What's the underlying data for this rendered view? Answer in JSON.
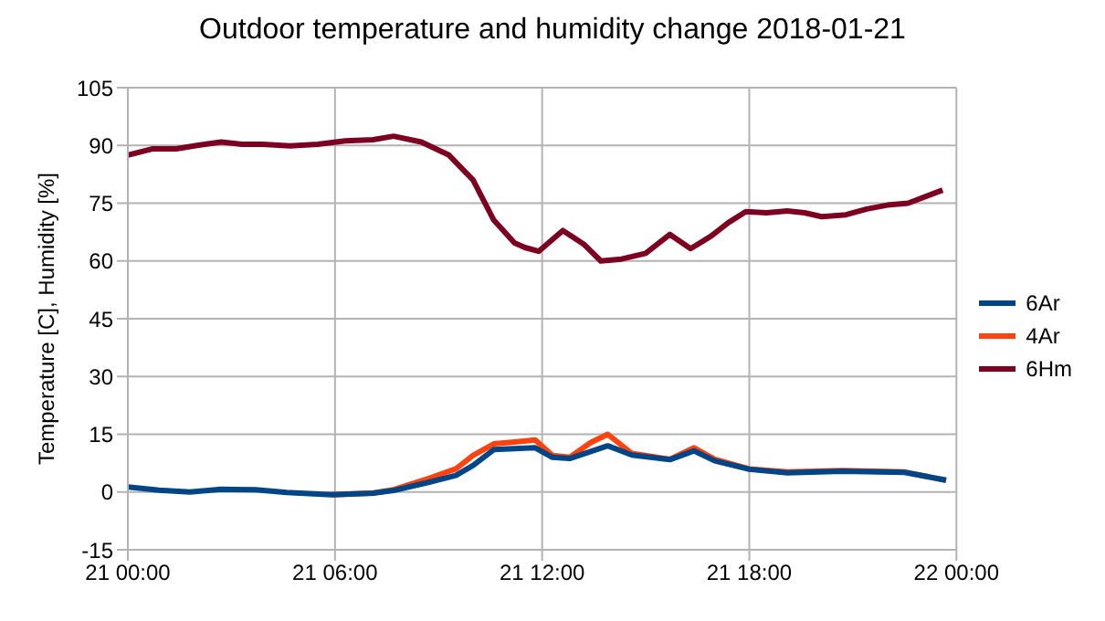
{
  "chart_data": {
    "type": "line",
    "title": "Outdoor temperature and humidity change 2018-01-21",
    "ylabel": "Temperature [C], Humidity [%]",
    "xlim": [
      "2018-01-21T00:00",
      "2018-01-22T00:00"
    ],
    "xticks": [
      {
        "value": "2018-01-21T00:00",
        "label": "21 00:00"
      },
      {
        "value": "2018-01-21T06:00",
        "label": "21 06:00"
      },
      {
        "value": "2018-01-21T12:00",
        "label": "21 12:00"
      },
      {
        "value": "2018-01-21T18:00",
        "label": "21 18:00"
      },
      {
        "value": "2018-01-22T00:00",
        "label": "22 00:00"
      }
    ],
    "ylim": [
      -15,
      105
    ],
    "yticks": [
      -15,
      0,
      15,
      30,
      45,
      60,
      75,
      90,
      105
    ],
    "grid": true,
    "legend": "right",
    "marker": "none",
    "line_style": "solid",
    "series": [
      {
        "name": "6Ar",
        "color": "#004586",
        "x": [
          "2018-01-21T00:00",
          "2018-01-21T00:54",
          "2018-01-21T01:48",
          "2018-01-21T02:42",
          "2018-01-21T03:42",
          "2018-01-21T04:36",
          "2018-01-21T05:54",
          "2018-01-21T07:06",
          "2018-01-21T07:42",
          "2018-01-21T08:42",
          "2018-01-21T09:30",
          "2018-01-21T10:00",
          "2018-01-21T10:36",
          "2018-01-21T11:48",
          "2018-01-21T12:18",
          "2018-01-21T12:48",
          "2018-01-21T13:54",
          "2018-01-21T14:36",
          "2018-01-21T15:42",
          "2018-01-21T16:24",
          "2018-01-21T17:00",
          "2018-01-21T18:00",
          "2018-01-21T19:06",
          "2018-01-21T20:42",
          "2018-01-21T22:30",
          "2018-01-21T23:42"
        ],
        "values": [
          1.3,
          0.5,
          0,
          0.7,
          0.6,
          -0.1,
          -0.7,
          -0.3,
          0.4,
          2.5,
          4.3,
          6.9,
          11,
          11.5,
          9,
          8.7,
          12,
          9.6,
          8.4,
          10.7,
          8.1,
          5.9,
          5,
          5.4,
          5.1,
          3.1
        ]
      },
      {
        "name": "4Ar",
        "color": "#ff420e",
        "x": [
          "2018-01-21T05:54",
          "2018-01-21T07:06",
          "2018-01-21T07:42",
          "2018-01-21T08:42",
          "2018-01-21T09:30",
          "2018-01-21T10:00",
          "2018-01-21T10:36",
          "2018-01-21T11:12",
          "2018-01-21T11:48",
          "2018-01-21T12:18",
          "2018-01-21T12:48",
          "2018-01-21T13:24",
          "2018-01-21T13:54",
          "2018-01-21T14:36",
          "2018-01-21T15:42",
          "2018-01-21T16:24",
          "2018-01-21T17:00",
          "2018-01-21T18:00",
          "2018-01-21T19:06",
          "2018-01-21T20:42",
          "2018-01-21T22:30",
          "2018-01-21T23:42"
        ],
        "values": [
          -0.7,
          -0.3,
          0.6,
          3.5,
          6,
          9.5,
          12.5,
          13,
          13.5,
          9.5,
          9,
          12.8,
          15,
          10,
          8.5,
          11.5,
          8.5,
          6,
          5.2,
          5.6,
          5.2,
          3
        ]
      },
      {
        "name": "6Hm",
        "color": "#7e0021",
        "x": [
          "2018-01-21T00:00",
          "2018-01-21T00:42",
          "2018-01-21T01:24",
          "2018-01-21T02:00",
          "2018-01-21T02:42",
          "2018-01-21T03:18",
          "2018-01-21T03:54",
          "2018-01-21T04:42",
          "2018-01-21T05:30",
          "2018-01-21T06:18",
          "2018-01-21T07:06",
          "2018-01-21T07:42",
          "2018-01-21T08:30",
          "2018-01-21T09:18",
          "2018-01-21T10:00",
          "2018-01-21T10:36",
          "2018-01-21T11:12",
          "2018-01-21T11:30",
          "2018-01-21T11:54",
          "2018-01-21T12:36",
          "2018-01-21T13:12",
          "2018-01-21T13:42",
          "2018-01-21T14:18",
          "2018-01-21T15:00",
          "2018-01-21T15:42",
          "2018-01-21T16:18",
          "2018-01-21T16:54",
          "2018-01-21T17:24",
          "2018-01-21T17:54",
          "2018-01-21T18:30",
          "2018-01-21T19:06",
          "2018-01-21T19:36",
          "2018-01-21T20:06",
          "2018-01-21T20:48",
          "2018-01-21T21:24",
          "2018-01-21T22:00",
          "2018-01-21T22:36",
          "2018-01-21T23:36"
        ],
        "values": [
          87.5,
          89.1,
          89.1,
          90,
          90.9,
          90.3,
          90.3,
          89.9,
          90.3,
          91.2,
          91.5,
          92.4,
          90.9,
          87.5,
          81,
          70.6,
          64.7,
          63.5,
          62.5,
          67.9,
          64.4,
          60,
          60.5,
          62,
          66.9,
          63.2,
          66.5,
          70,
          72.8,
          72.5,
          73,
          72.5,
          71.5,
          72,
          73.5,
          74.5,
          75,
          78.4
        ]
      }
    ]
  }
}
